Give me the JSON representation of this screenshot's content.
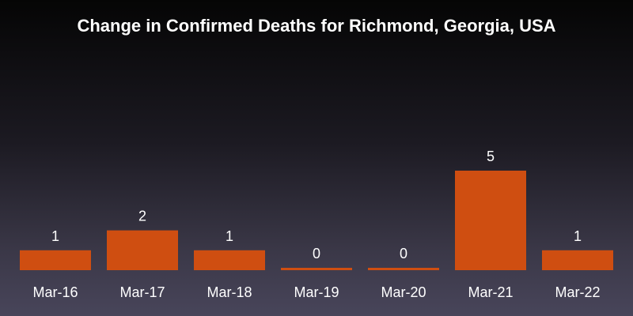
{
  "chart_data": {
    "type": "bar",
    "title": "Change in Confirmed Deaths for Richmond, Georgia, USA",
    "categories": [
      "Mar-16",
      "Mar-17",
      "Mar-18",
      "Mar-19",
      "Mar-20",
      "Mar-21",
      "Mar-22"
    ],
    "values": [
      1,
      2,
      1,
      0,
      0,
      5,
      1
    ],
    "data_labels": [
      "1",
      "2",
      "1",
      "0",
      "0",
      "5",
      "1"
    ],
    "xlabel": "",
    "ylabel": "",
    "ylim": [
      0,
      5
    ],
    "grid": false,
    "legend": "none",
    "colors": {
      "bar": "#cf4e11",
      "text": "#ffffff"
    }
  }
}
